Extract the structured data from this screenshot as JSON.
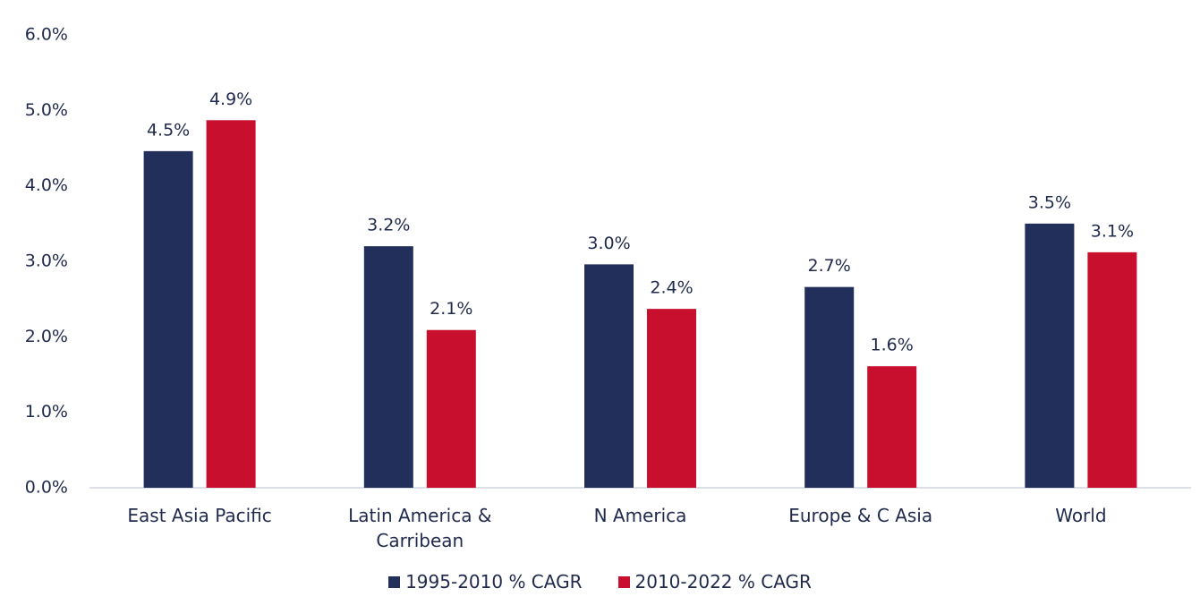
{
  "chart_data": {
    "type": "bar",
    "categories": [
      "East Asia Pacific",
      "Latin America & Carribean",
      "N America",
      "Europe & C Asia",
      "World"
    ],
    "series": [
      {
        "name": "1995-2010 % CAGR",
        "color": "#232f5b",
        "values": [
          4.46,
          3.2,
          2.96,
          2.66,
          3.5
        ],
        "value_labels": [
          "4.5%",
          "3.2%",
          "3.0%",
          "2.7%",
          "3.5%"
        ]
      },
      {
        "name": "2010-2022 % CAGR",
        "color": "#c8102e",
        "values": [
          4.87,
          2.09,
          2.37,
          1.61,
          3.12
        ],
        "value_labels": [
          "4.9%",
          "2.1%",
          "2.4%",
          "1.6%",
          "3.1%"
        ]
      }
    ],
    "ylim": [
      0,
      6
    ],
    "yticks": [
      {
        "value": 0,
        "label": "0.0%"
      },
      {
        "value": 1,
        "label": "1.0%"
      },
      {
        "value": 2,
        "label": "2.0%"
      },
      {
        "value": 3,
        "label": "3.0%"
      },
      {
        "value": 4,
        "label": "4.0%"
      },
      {
        "value": 5,
        "label": "5.0%"
      },
      {
        "value": 6,
        "label": "6.0%"
      }
    ],
    "grid": false,
    "legend": "bottom"
  }
}
